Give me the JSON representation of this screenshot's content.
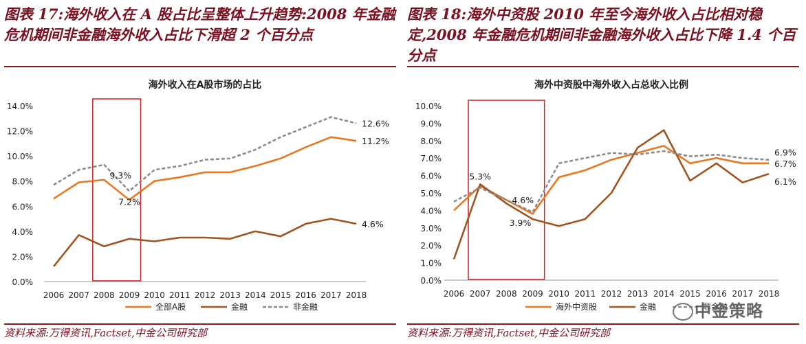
{
  "left": {
    "caption": "图表 17:海外收入在 A 股占比呈整体上升趋势:2008 年金融危机期间非金融海外收入占比下滑超 2 个百分点",
    "source": "资料来源:万得资讯,Factset,中金公司研究部",
    "chart_data": {
      "type": "line",
      "title": "海外收入在A股市场的占比",
      "categories": [
        "2006",
        "2007",
        "2008",
        "2009",
        "2010",
        "2011",
        "2012",
        "2013",
        "2014",
        "2015",
        "2016",
        "2017",
        "2018"
      ],
      "y_ticks": [
        "0.0%",
        "2.0%",
        "4.0%",
        "6.0%",
        "8.0%",
        "10.0%",
        "12.0%",
        "14.0%"
      ],
      "ylim": [
        0,
        14
      ],
      "series": [
        {
          "name": "全部A股",
          "color": "#e87722",
          "dash": false,
          "values": [
            6.6,
            7.9,
            8.1,
            6.5,
            8.0,
            8.3,
            8.7,
            8.7,
            9.2,
            9.8,
            10.7,
            11.5,
            11.2
          ]
        },
        {
          "name": "金融",
          "color": "#a0541e",
          "dash": false,
          "values": [
            1.2,
            3.7,
            2.8,
            3.4,
            3.2,
            3.5,
            3.5,
            3.4,
            4.0,
            3.6,
            4.6,
            5.0,
            4.6
          ]
        },
        {
          "name": "非金融",
          "color": "#8c8c8c",
          "dash": true,
          "values": [
            7.7,
            8.9,
            9.3,
            7.2,
            8.9,
            9.2,
            9.7,
            9.8,
            10.5,
            11.5,
            12.3,
            13.1,
            12.6
          ]
        }
      ],
      "annotations": [
        {
          "text": "9.3%",
          "series": 2,
          "index": 2,
          "pos": "below-right"
        },
        {
          "text": "7.2%",
          "series": 2,
          "index": 3,
          "pos": "below"
        },
        {
          "text": "12.6%",
          "series": 2,
          "index": 12,
          "pos": "right"
        },
        {
          "text": "11.2%",
          "series": 0,
          "index": 12,
          "pos": "right"
        },
        {
          "text": "4.6%",
          "series": 1,
          "index": 12,
          "pos": "right"
        }
      ],
      "highlight": {
        "from": "2008",
        "to": "2009",
        "color": "#d42020"
      },
      "legend": "bottom",
      "grid": false
    }
  },
  "right": {
    "caption": "图表 18:海外中资股 2010 年至今海外收入占比相对稳定,2008 年金融危机期间非金融海外收入占比下降 1.4 个百分点",
    "source": "资料来源:万得资讯,Factset,中金公司研究部",
    "chart_data": {
      "type": "line",
      "title": "海外中资股中海外收入占总收入比例",
      "categories": [
        "2006",
        "2007",
        "2008",
        "2009",
        "2010",
        "2011",
        "2012",
        "2013",
        "2014",
        "2015",
        "2016",
        "2017",
        "2018"
      ],
      "y_ticks": [
        "0.0%",
        "1.0%",
        "2.0%",
        "3.0%",
        "4.0%",
        "5.0%",
        "6.0%",
        "7.0%",
        "8.0%",
        "9.0%",
        "10.0%"
      ],
      "ylim": [
        0,
        10
      ],
      "series": [
        {
          "name": "海外中资股",
          "color": "#e87722",
          "dash": false,
          "values": [
            4.0,
            5.4,
            4.6,
            3.8,
            5.9,
            6.3,
            6.9,
            7.3,
            7.7,
            6.7,
            7.0,
            6.7,
            6.7
          ]
        },
        {
          "name": "金融",
          "color": "#a0541e",
          "dash": false,
          "values": [
            1.2,
            5.5,
            4.4,
            3.5,
            3.1,
            3.5,
            5.0,
            7.6,
            8.6,
            5.7,
            6.7,
            5.6,
            6.1
          ]
        },
        {
          "name": "非金融",
          "color": "#8c8c8c",
          "dash": true,
          "values": [
            4.5,
            5.3,
            4.6,
            3.9,
            6.7,
            7.0,
            7.3,
            7.2,
            7.4,
            7.1,
            7.2,
            7.0,
            6.9
          ]
        }
      ],
      "annotations": [
        {
          "text": "5.3%",
          "series": 2,
          "index": 1,
          "pos": "above"
        },
        {
          "text": "4.6%",
          "series": 2,
          "index": 2,
          "pos": "right"
        },
        {
          "text": "3.9%",
          "series": 2,
          "index": 3,
          "pos": "below-left"
        },
        {
          "text": "6.9%",
          "series": 2,
          "index": 12,
          "pos": "right-above"
        },
        {
          "text": "6.7%",
          "series": 0,
          "index": 12,
          "pos": "right"
        },
        {
          "text": "6.1%",
          "series": 1,
          "index": 12,
          "pos": "right-below"
        }
      ],
      "highlight": {
        "from": "2007",
        "to": "2009",
        "color": "#d42020"
      },
      "legend": "bottom",
      "grid": false
    }
  },
  "watermark": "中金策略"
}
